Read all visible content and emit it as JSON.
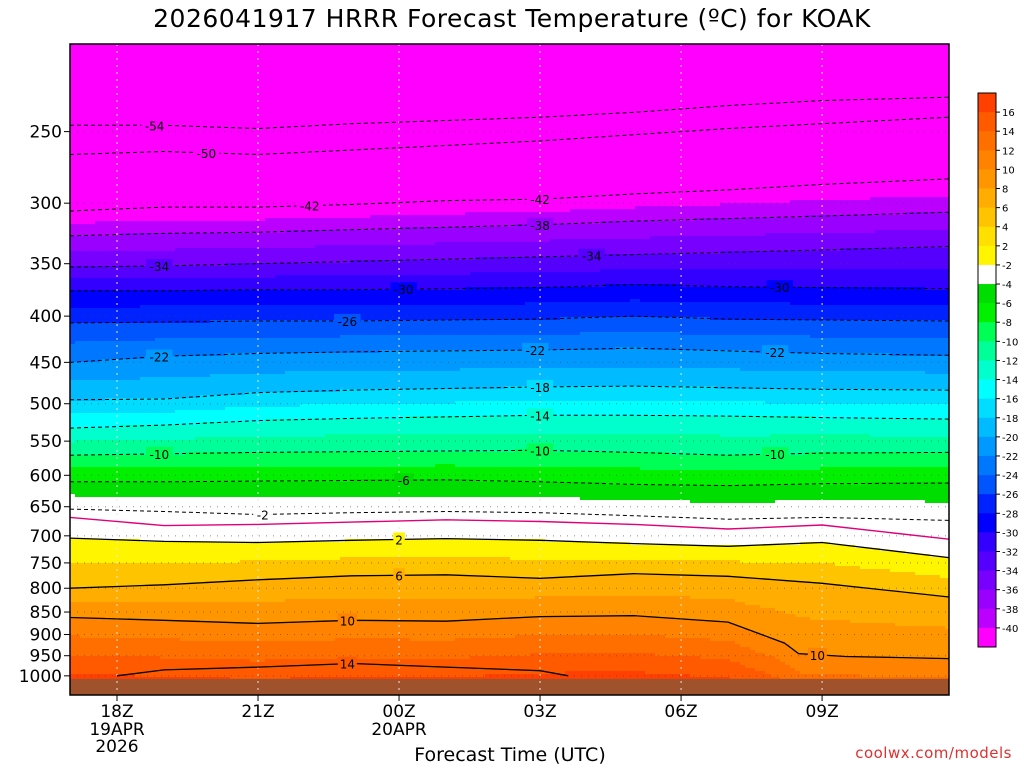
{
  "title": "2026041917 HRRR Forecast Temperature (ºC) for KOAK",
  "credit": "coolwx.com/models",
  "chart_data": {
    "type": "heatmap",
    "title": "2026041917 HRRR Forecast Temperature (ºC) for KOAK",
    "xlabel": "Forecast Time (UTC)",
    "ylabel": "",
    "x_unit": "hours since 2026-04-19 17Z",
    "x_range": [
      17,
      35.7
    ],
    "y_range_hpa": [
      200,
      1050
    ],
    "y_scale": "log-pressure",
    "x_ticks": [
      {
        "x": 18,
        "label": "18Z",
        "sub": [
          "19APR",
          "2026"
        ]
      },
      {
        "x": 21,
        "label": "21Z",
        "sub": []
      },
      {
        "x": 24,
        "label": "00Z",
        "sub": [
          "20APR"
        ]
      },
      {
        "x": 27,
        "label": "03Z",
        "sub": []
      },
      {
        "x": 30,
        "label": "06Z",
        "sub": []
      },
      {
        "x": 33,
        "label": "09Z",
        "sub": []
      }
    ],
    "y_ticks": [
      250,
      300,
      350,
      400,
      450,
      500,
      550,
      600,
      650,
      700,
      750,
      800,
      850,
      900,
      950,
      1000
    ],
    "grid": true,
    "colorbar": {
      "placement": "right",
      "levels": [
        16,
        14,
        12,
        10,
        8,
        6,
        4,
        2,
        -2,
        -4,
        -6,
        -8,
        -10,
        -12,
        -14,
        -16,
        -18,
        -20,
        -22,
        -24,
        -26,
        -28,
        -30,
        -32,
        -34,
        -36,
        -38,
        -40
      ],
      "colors": [
        "#ff4000",
        "#ff5a00",
        "#ff6f00",
        "#ff8200",
        "#ff9600",
        "#ffad00",
        "#ffc400",
        "#ffe000",
        "#fff500",
        "#ffffff",
        "#00dd00",
        "#00f000",
        "#00ff55",
        "#00ff99",
        "#00ffcc",
        "#00ffff",
        "#00ddff",
        "#00bbff",
        "#0099ff",
        "#0077ff",
        "#0055ff",
        "#0022ff",
        "#0000ff",
        "#3300ff",
        "#5500ff",
        "#7700ff",
        "#9900ff",
        "#bb00ff",
        "#ff00ff"
      ]
    },
    "isotherms": [
      {
        "t": -54,
        "p": [
          [
            17,
            246
          ],
          [
            19,
            246
          ],
          [
            21,
            248
          ],
          [
            23,
            245
          ],
          [
            25,
            243
          ],
          [
            27,
            241
          ],
          [
            29,
            238
          ],
          [
            31,
            234
          ],
          [
            33,
            231
          ],
          [
            35.7,
            229
          ]
        ],
        "labels": [
          18.8
        ]
      },
      {
        "t": -50,
        "p": [
          [
            17,
            265
          ],
          [
            19,
            263
          ],
          [
            21,
            265
          ],
          [
            23,
            262
          ],
          [
            25,
            259
          ],
          [
            27,
            256
          ],
          [
            29,
            252
          ],
          [
            31,
            248
          ],
          [
            33,
            245
          ],
          [
            35.7,
            241
          ]
        ],
        "labels": [
          19.9
        ]
      },
      {
        "t": -42,
        "p": [
          [
            17,
            306
          ],
          [
            19,
            303
          ],
          [
            21,
            303
          ],
          [
            23,
            301
          ],
          [
            25,
            298
          ],
          [
            27,
            297
          ],
          [
            29,
            293
          ],
          [
            31,
            290
          ],
          [
            33,
            286
          ],
          [
            35.7,
            282
          ]
        ],
        "labels": [
          22.1,
          27
        ]
      },
      {
        "t": -38,
        "p": [
          [
            17,
            326
          ],
          [
            19,
            324
          ],
          [
            21,
            323
          ],
          [
            23,
            321
          ],
          [
            25,
            319
          ],
          [
            27,
            317
          ],
          [
            29,
            314
          ],
          [
            31,
            312
          ],
          [
            33,
            310
          ],
          [
            35.7,
            307
          ]
        ],
        "labels": [
          27
        ]
      },
      {
        "t": -34,
        "p": [
          [
            17,
            353
          ],
          [
            19,
            352
          ],
          [
            21,
            350
          ],
          [
            23,
            348
          ],
          [
            25,
            346
          ],
          [
            27,
            344
          ],
          [
            29,
            342
          ],
          [
            31,
            340
          ],
          [
            33,
            338
          ],
          [
            35.7,
            335
          ]
        ],
        "labels": [
          18.9,
          28.1
        ]
      },
      {
        "t": -30,
        "p": [
          [
            17,
            375
          ],
          [
            19,
            375
          ],
          [
            21,
            374
          ],
          [
            23,
            374
          ],
          [
            25,
            373
          ],
          [
            27,
            372
          ],
          [
            29,
            369
          ],
          [
            31,
            371
          ],
          [
            33,
            372
          ],
          [
            35.7,
            373
          ]
        ],
        "labels": [
          24.1,
          32.1
        ]
      },
      {
        "t": -26,
        "p": [
          [
            17,
            407
          ],
          [
            19,
            406
          ],
          [
            21,
            405
          ],
          [
            23,
            405
          ],
          [
            25,
            404
          ],
          [
            27,
            403
          ],
          [
            29,
            400
          ],
          [
            31,
            403
          ],
          [
            33,
            404
          ],
          [
            35.7,
            405
          ]
        ],
        "labels": [
          22.9
        ]
      },
      {
        "t": -22,
        "p": [
          [
            17,
            450
          ],
          [
            19,
            443
          ],
          [
            21,
            440
          ],
          [
            23,
            438
          ],
          [
            25,
            437
          ],
          [
            27,
            436
          ],
          [
            29,
            434
          ],
          [
            31,
            437
          ],
          [
            33,
            440
          ],
          [
            35.7,
            442
          ]
        ],
        "labels": [
          18.9,
          26.9,
          32
        ]
      },
      {
        "t": -18,
        "p": [
          [
            17,
            495
          ],
          [
            19,
            494
          ],
          [
            21,
            486
          ],
          [
            23,
            483
          ],
          [
            25,
            481
          ],
          [
            27,
            479
          ],
          [
            29,
            478
          ],
          [
            31,
            480
          ],
          [
            33,
            482
          ],
          [
            35.7,
            483
          ]
        ],
        "labels": [
          27
        ]
      },
      {
        "t": -14,
        "p": [
          [
            17,
            532
          ],
          [
            19,
            528
          ],
          [
            21,
            522
          ],
          [
            23,
            519
          ],
          [
            25,
            517
          ],
          [
            27,
            515
          ],
          [
            29,
            515
          ],
          [
            31,
            516
          ],
          [
            33,
            518
          ],
          [
            35.7,
            520
          ]
        ],
        "labels": [
          27
        ]
      },
      {
        "t": -10,
        "p": [
          [
            17,
            570
          ],
          [
            19,
            568
          ],
          [
            21,
            566
          ],
          [
            23,
            565
          ],
          [
            25,
            564
          ],
          [
            27,
            563
          ],
          [
            29,
            566
          ],
          [
            31,
            570
          ],
          [
            33,
            567
          ],
          [
            35.7,
            566
          ]
        ],
        "labels": [
          18.9,
          27,
          32
        ]
      },
      {
        "t": -6,
        "p": [
          [
            17,
            610
          ],
          [
            19,
            610
          ],
          [
            21,
            609
          ],
          [
            23,
            608
          ],
          [
            25,
            607
          ],
          [
            27,
            610
          ],
          [
            29,
            614
          ],
          [
            31,
            616
          ],
          [
            33,
            613
          ],
          [
            35.7,
            612
          ]
        ],
        "labels": [
          24.1
        ]
      },
      {
        "t": -2,
        "p": [
          [
            17,
            654
          ],
          [
            19,
            658
          ],
          [
            21,
            663
          ],
          [
            23,
            660
          ],
          [
            25,
            658
          ],
          [
            27,
            660
          ],
          [
            29,
            665
          ],
          [
            31,
            671
          ],
          [
            33,
            668
          ],
          [
            35.7,
            673
          ]
        ],
        "labels": [
          21.1
        ]
      },
      {
        "t": 2,
        "p": [
          [
            17,
            704
          ],
          [
            19,
            710
          ],
          [
            21,
            712
          ],
          [
            23,
            708
          ],
          [
            25,
            705
          ],
          [
            27,
            708
          ],
          [
            29,
            714
          ],
          [
            31,
            719
          ],
          [
            33,
            712
          ],
          [
            35.7,
            740
          ]
        ],
        "labels": [
          24
        ]
      },
      {
        "t": 6,
        "p": [
          [
            17,
            800
          ],
          [
            19,
            793
          ],
          [
            21,
            783
          ],
          [
            23,
            775
          ],
          [
            25,
            773
          ],
          [
            27,
            780
          ],
          [
            29,
            771
          ],
          [
            31,
            776
          ],
          [
            33,
            790
          ],
          [
            35.7,
            818
          ]
        ],
        "labels": [
          24
        ]
      },
      {
        "t": 10,
        "p": [
          [
            17,
            862
          ],
          [
            19,
            868
          ],
          [
            21,
            875
          ],
          [
            23,
            868
          ],
          [
            25,
            870
          ],
          [
            27,
            860
          ],
          [
            29,
            858
          ],
          [
            31,
            872
          ],
          [
            32.2,
            920
          ],
          [
            32.5,
            945
          ],
          [
            33.5,
            952
          ],
          [
            35.7,
            957
          ]
        ],
        "labels": [
          22.9,
          32.9
        ]
      },
      {
        "t": 14,
        "p": [
          [
            18,
            1000
          ],
          [
            19,
            985
          ],
          [
            21,
            978
          ],
          [
            23,
            969
          ],
          [
            25,
            978
          ],
          [
            27,
            987
          ],
          [
            27.6,
            1000
          ]
        ],
        "labels": [
          22.9
        ]
      }
    ],
    "freezing_line_hpa": [
      [
        17,
        668
      ],
      [
        19,
        682
      ],
      [
        21,
        680
      ],
      [
        23,
        676
      ],
      [
        25,
        672
      ],
      [
        27,
        675
      ],
      [
        29,
        680
      ],
      [
        31,
        688
      ],
      [
        33,
        681
      ],
      [
        35.7,
        706
      ]
    ]
  }
}
